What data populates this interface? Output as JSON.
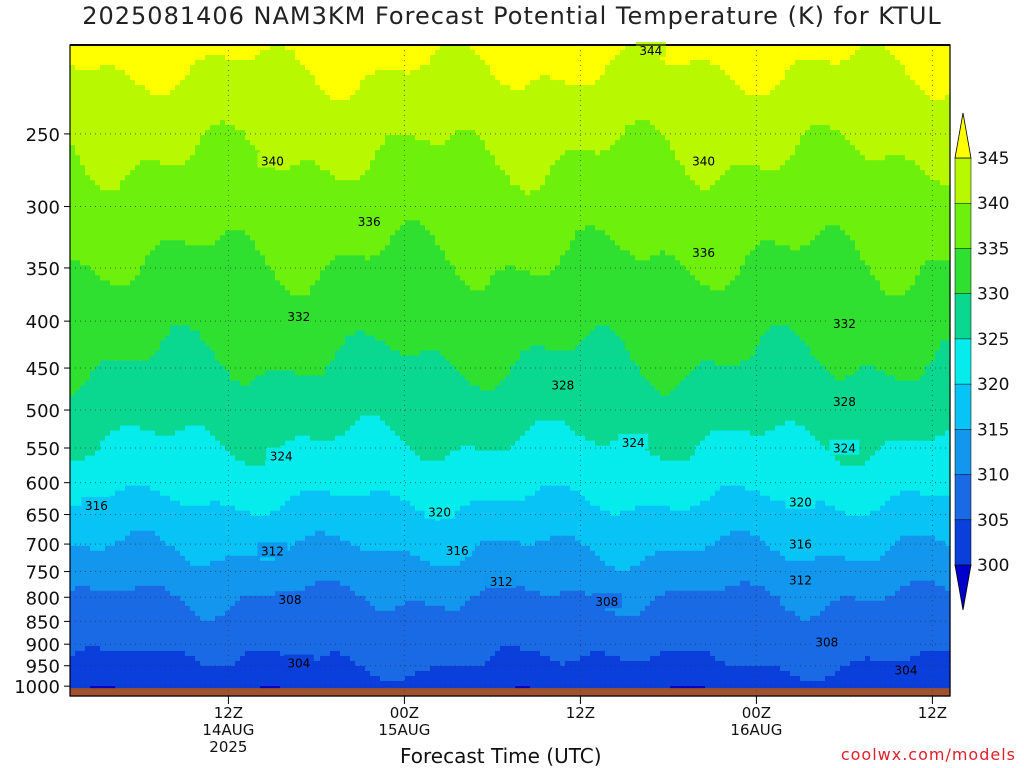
{
  "title": "2025081406 NAM3KM Forecast Potential Temperature (K) for KTUL",
  "xlabel": "Forecast Time (UTC)",
  "credit": "coolwx.com/models",
  "chart_data": {
    "type": "contour",
    "variable": "Potential Temperature (K)",
    "y_axis": {
      "type": "pressure (hPa), log scale, inverted",
      "ticks": [
        250,
        300,
        350,
        400,
        450,
        500,
        550,
        600,
        650,
        700,
        750,
        800,
        850,
        900,
        950,
        1000
      ],
      "range": [
        1025,
        200
      ]
    },
    "x_axis": {
      "range_hours": [
        -9,
        41
      ],
      "ticks": [
        {
          "hour": 0,
          "lines": [
            "12Z",
            "14AUG",
            "2025"
          ]
        },
        {
          "hour": 10,
          "lines": [
            "00Z",
            "15AUG"
          ]
        },
        {
          "hour": 20,
          "lines": [
            "12Z"
          ]
        },
        {
          "hour": 30,
          "lines": [
            "00Z",
            "16AUG"
          ]
        },
        {
          "hour": 40,
          "lines": [
            "12Z"
          ]
        }
      ]
    },
    "colorbar": {
      "labels": [
        300,
        305,
        310,
        315,
        320,
        325,
        330,
        335,
        340,
        345
      ],
      "bands": [
        {
          "range": [
            295,
            300
          ],
          "color": "#0000cc"
        },
        {
          "range": [
            300,
            305
          ],
          "color": "#0a3fdc"
        },
        {
          "range": [
            305,
            310
          ],
          "color": "#1a6ae6"
        },
        {
          "range": [
            310,
            315
          ],
          "color": "#1296ee"
        },
        {
          "range": [
            315,
            320
          ],
          "color": "#08c4f6"
        },
        {
          "range": [
            320,
            325
          ],
          "color": "#06ecec"
        },
        {
          "range": [
            325,
            330
          ],
          "color": "#0ad890"
        },
        {
          "range": [
            330,
            335
          ],
          "color": "#30e030"
        },
        {
          "range": [
            335,
            340
          ],
          "color": "#6cf00c"
        },
        {
          "range": [
            340,
            345
          ],
          "color": "#b8f800"
        },
        {
          "range": [
            345,
            350
          ],
          "color": "#ffff00"
        }
      ]
    },
    "ground_color": "#a0522d",
    "contour_labels": [
      {
        "value": "344",
        "hour": 24.0,
        "p": 203
      },
      {
        "value": "340",
        "hour": 2.5,
        "p": 268
      },
      {
        "value": "340",
        "hour": 27.0,
        "p": 268
      },
      {
        "value": "336",
        "hour": 8.0,
        "p": 312
      },
      {
        "value": "336",
        "hour": 27.0,
        "p": 337
      },
      {
        "value": "332",
        "hour": 4.0,
        "p": 396
      },
      {
        "value": "332",
        "hour": 35.0,
        "p": 403
      },
      {
        "value": "328",
        "hour": 19.0,
        "p": 470
      },
      {
        "value": "328",
        "hour": 35.0,
        "p": 490
      },
      {
        "value": "324",
        "hour": 3.0,
        "p": 562
      },
      {
        "value": "324",
        "hour": 23.0,
        "p": 543
      },
      {
        "value": "324",
        "hour": 35.0,
        "p": 551
      },
      {
        "value": "320",
        "hour": 12.0,
        "p": 647
      },
      {
        "value": "320",
        "hour": 32.5,
        "p": 631
      },
      {
        "value": "316",
        "hour": -7.5,
        "p": 636
      },
      {
        "value": "316",
        "hour": 13.0,
        "p": 712
      },
      {
        "value": "316",
        "hour": 32.5,
        "p": 701
      },
      {
        "value": "312",
        "hour": 2.5,
        "p": 713
      },
      {
        "value": "312",
        "hour": 15.5,
        "p": 770
      },
      {
        "value": "312",
        "hour": 32.5,
        "p": 767
      },
      {
        "value": "308",
        "hour": 3.5,
        "p": 806
      },
      {
        "value": "308",
        "hour": 21.5,
        "p": 810
      },
      {
        "value": "308",
        "hour": 34.0,
        "p": 896
      },
      {
        "value": "304",
        "hour": 4.0,
        "p": 945
      },
      {
        "value": "304",
        "hour": 38.5,
        "p": 962
      }
    ]
  }
}
